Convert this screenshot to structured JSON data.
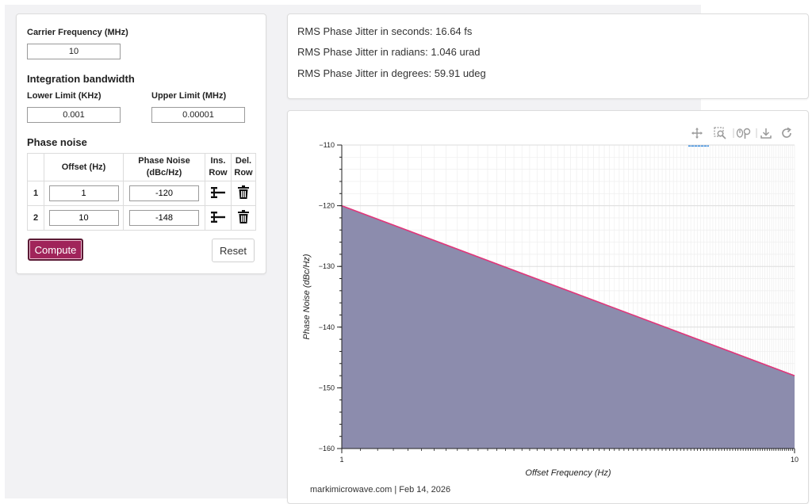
{
  "form": {
    "carrier_label": "Carrier Frequency (MHz)",
    "carrier_value": "10",
    "integration_title": "Integration bandwidth",
    "lower_label": "Lower Limit (KHz)",
    "lower_value": "0.001",
    "upper_label": "Upper Limit (MHz)",
    "upper_value": "0.00001",
    "phase_noise_title": "Phase noise",
    "table": {
      "col_offset": "Offset (Hz)",
      "col_pn_line1": "Phase Noise",
      "col_pn_line2": "(dBc/Hz)",
      "col_ins_line1": "Ins.",
      "col_ins_line2": "Row",
      "col_del_line1": "Del.",
      "col_del_line2": "Row",
      "rows": [
        {
          "num": "1",
          "offset": "1",
          "pn": "-120"
        },
        {
          "num": "2",
          "offset": "10",
          "pn": "-148"
        }
      ]
    },
    "compute_label": "Compute",
    "reset_label": "Reset"
  },
  "results": {
    "seconds": "RMS Phase Jitter in seconds: 16.64 fs",
    "radians": "RMS Phase Jitter in radians: 1.046 urad",
    "degrees": "RMS Phase Jitter in degrees: 59.91 udeg"
  },
  "toolbar": {
    "icons": [
      "pan-icon",
      "box-zoom-icon",
      "wheel-zoom-icon",
      "save-icon",
      "reset-icon"
    ]
  },
  "footer": "markimicrowave.com | Feb 14, 2026",
  "chart_data": {
    "type": "area",
    "x": [
      1,
      10
    ],
    "y": [
      -120,
      -148
    ],
    "xlabel": "Offset Frequency (Hz)",
    "ylabel": "Phase Noise (dBc/Hz)",
    "xscale": "log",
    "xlim": [
      1,
      10
    ],
    "ylim": [
      -160,
      -110
    ],
    "yticks": [
      -110,
      -120,
      -130,
      -140,
      -150,
      -160
    ],
    "xticks": [
      1,
      10
    ],
    "grid": true,
    "line_color": "#e0367a",
    "fill_color": "#8c8cad"
  }
}
